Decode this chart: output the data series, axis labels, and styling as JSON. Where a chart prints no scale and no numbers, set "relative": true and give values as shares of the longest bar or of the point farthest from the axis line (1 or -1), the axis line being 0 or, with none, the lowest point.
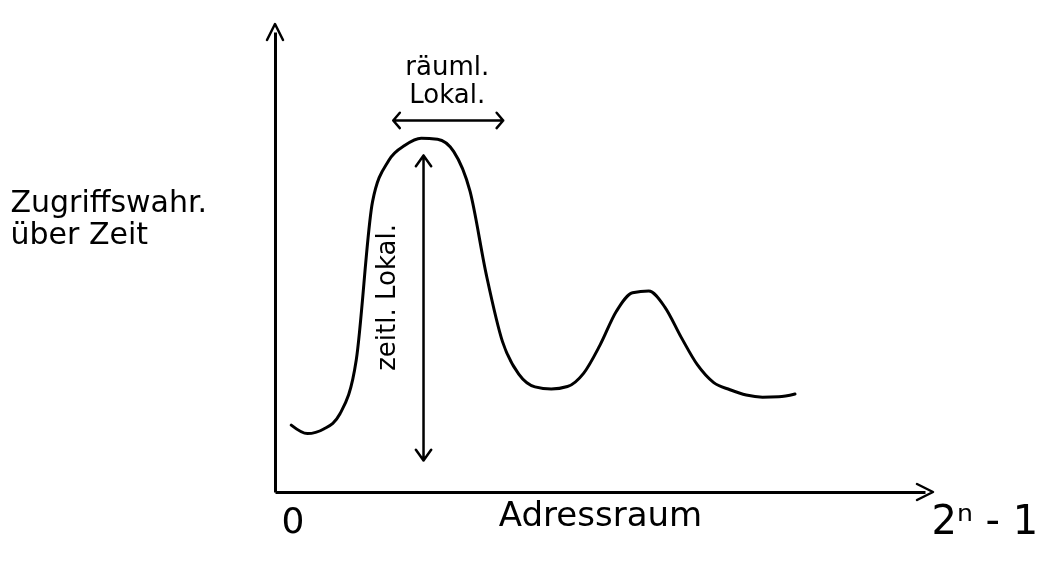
{
  "chart_data": {
    "type": "line",
    "relative": true,
    "xlabel": "Adressraum",
    "ylabel": "Zugriffswahr.\nüber Zeit",
    "marker": "none",
    "line_style": "solid",
    "categories": [
      null,
      null,
      null,
      null,
      null,
      null,
      null,
      null,
      null,
      null,
      null,
      null,
      null,
      null,
      null,
      null,
      null,
      null,
      null,
      null,
      null,
      null,
      null,
      null,
      null,
      null,
      null,
      null,
      null,
      null,
      null,
      null
    ],
    "series": [
      {
        "color": "#000000",
        "values": [
          0.189,
          0.165,
          0.178,
          0.221,
          0.373,
          0.82,
          0.937,
          0.98,
          1,
          0.997,
          0.962,
          0.85,
          0.615,
          0.425,
          0.333,
          0.297,
          0.291,
          0.298,
          0.336,
          0.415,
          0.51,
          0.563,
          0.568,
          0.522,
          0.437,
          0.359,
          0.309,
          0.289,
          0.274,
          0.268,
          0.269,
          0.277
        ]
      }
    ],
    "annotations": [
      "räuml.\nLokal.",
      "zeitl. Lokal.",
      "0",
      "2ⁿ - 1"
    ]
  }
}
